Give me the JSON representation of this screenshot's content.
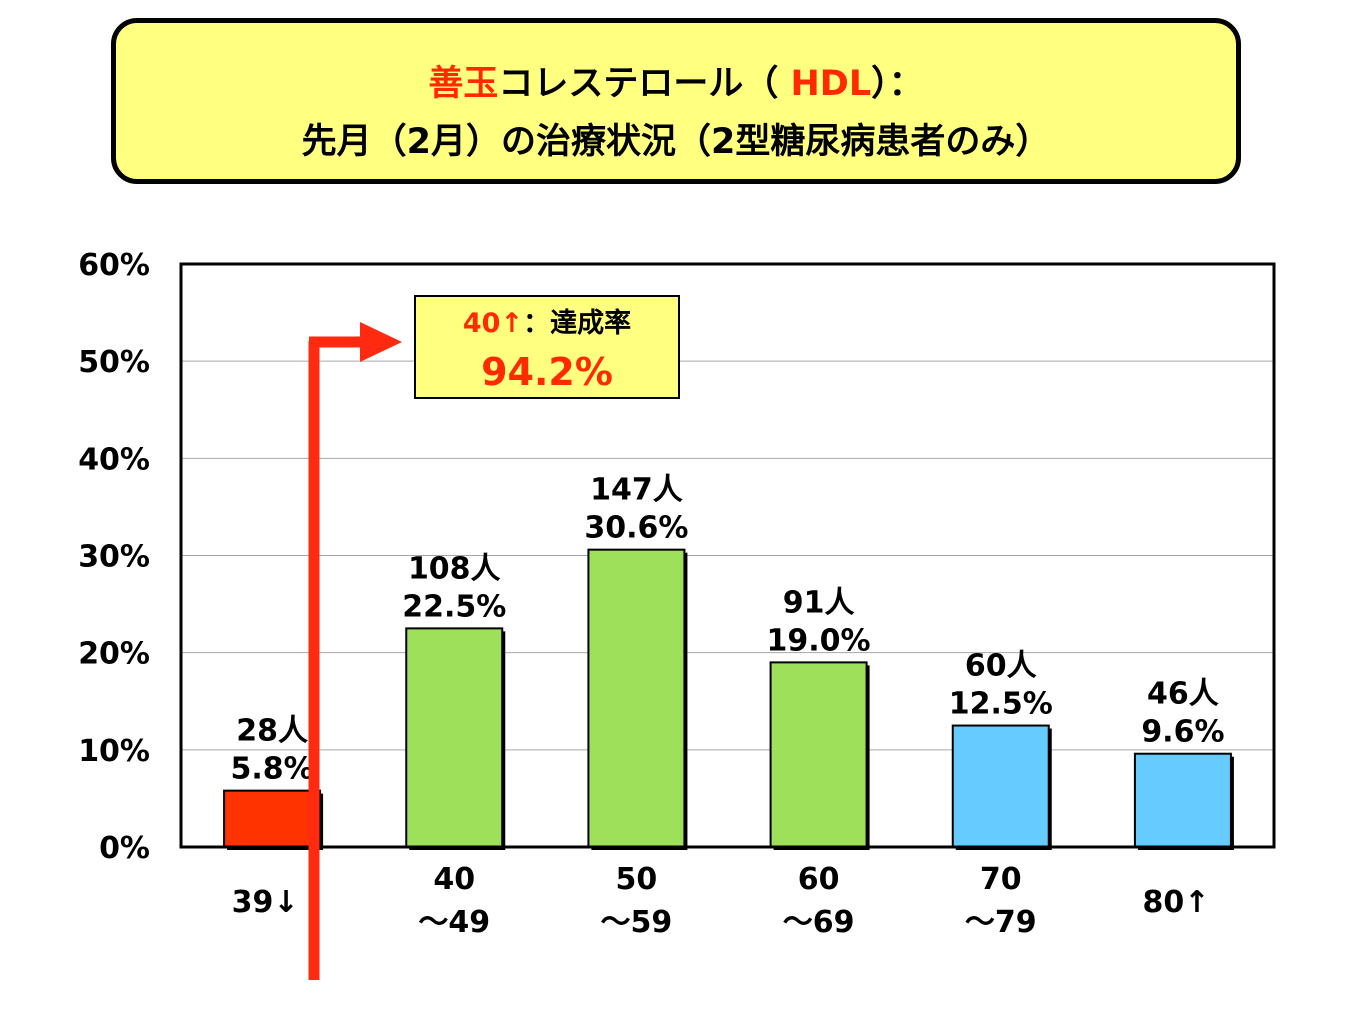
{
  "title": {
    "line1": {
      "highlight": "善玉",
      "mid": "コレステロール（ ",
      "abbr": "HDL",
      "end": "）："
    },
    "line2": "先月（2月）の治療状況（2型糖尿病患者のみ）"
  },
  "callout": {
    "prefix": "40↑",
    "label": "：達成率",
    "value": "94.2%"
  },
  "colors": {
    "title_bg": "#ffff80",
    "accent_red": "#ff2a00",
    "bar_low": "#ff3300",
    "bar_mid": "#9ee05a",
    "bar_high": "#66ccff",
    "arrow": "#ff2a10"
  },
  "chart_data": {
    "type": "bar",
    "categories": [
      "39↓",
      "40\n～49",
      "50\n～59",
      "60\n～69",
      "70\n～79",
      "80↑"
    ],
    "values": [
      5.8,
      22.5,
      30.6,
      19.0,
      12.5,
      9.6
    ],
    "counts": [
      "28人",
      "108人",
      "147人",
      "91人",
      "60人",
      "46人"
    ],
    "value_labels": [
      "5.8%",
      "22.5%",
      "30.6%",
      "19.0%",
      "12.5%",
      "9.6%"
    ],
    "bar_colors": [
      "#ff3300",
      "#9ee05a",
      "#9ee05a",
      "#9ee05a",
      "#66ccff",
      "#66ccff"
    ],
    "y_ticks": [
      "0%",
      "10%",
      "20%",
      "30%",
      "40%",
      "50%",
      "60%"
    ],
    "ylim": [
      0,
      60
    ],
    "grid": true,
    "xlabel": "",
    "ylabel": ""
  }
}
